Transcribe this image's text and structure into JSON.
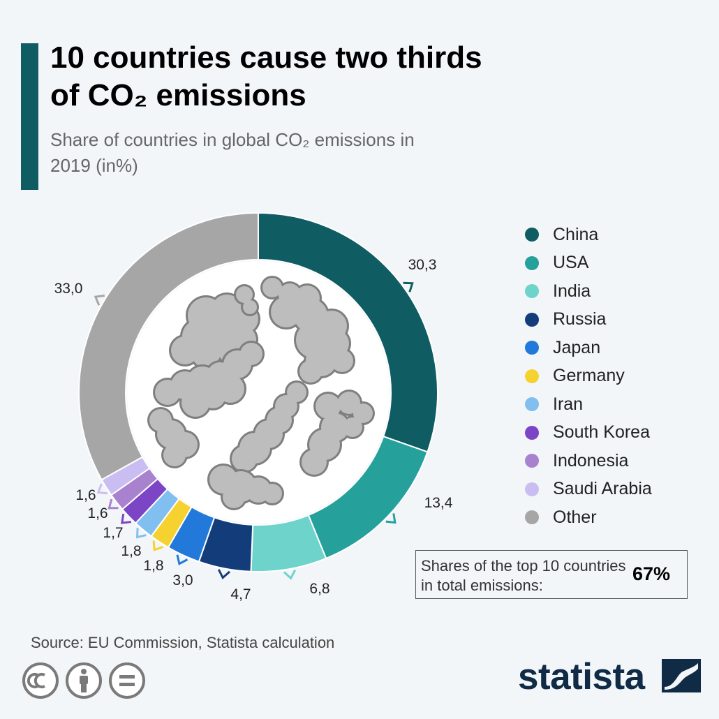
{
  "header": {
    "title": "10 countries cause two thirds of CO₂ emissions",
    "subtitle": "Share of countries in global CO₂ emissions in 2019 (in%)"
  },
  "chart_data": {
    "type": "pie",
    "variant": "donut",
    "title": "10 countries cause two thirds of CO₂ emissions",
    "subtitle": "Share of countries in global CO₂ emissions in 2019 (in%)",
    "unit": "%",
    "categories": [
      "China",
      "USA",
      "India",
      "Russia",
      "Japan",
      "Germany",
      "Iran",
      "South Korea",
      "Indonesia",
      "Saudi Arabia",
      "Other"
    ],
    "values": [
      30.3,
      13.4,
      6.8,
      4.7,
      3.0,
      1.8,
      1.8,
      1.7,
      1.6,
      1.6,
      33.0
    ],
    "value_labels": [
      "30,3",
      "13,4",
      "6,8",
      "4,7",
      "3,0",
      "1,8",
      "1,8",
      "1,7",
      "1,6",
      "1,6",
      "33,0"
    ],
    "colors": [
      "#0f5c63",
      "#26a09b",
      "#6dd3cb",
      "#133d7a",
      "#2379d9",
      "#f6d230",
      "#80bff0",
      "#7c45c6",
      "#a882cf",
      "#cabdf2",
      "#a6a6a6"
    ],
    "legend_position": "right"
  },
  "summary": {
    "label": "Shares of the top 10 countries in total emissions:",
    "value": "67%"
  },
  "footer": {
    "source": "Source: EU Commission, Statista calculation",
    "brand": "statista"
  },
  "icons": [
    "cc-icon",
    "person-icon",
    "equal-icon",
    "statista-logo-icon",
    "smoke-cloud-icon"
  ],
  "colors": {
    "accent": "#0f5c63",
    "background": "#f3f6f9",
    "brand": "#0f2b45"
  }
}
